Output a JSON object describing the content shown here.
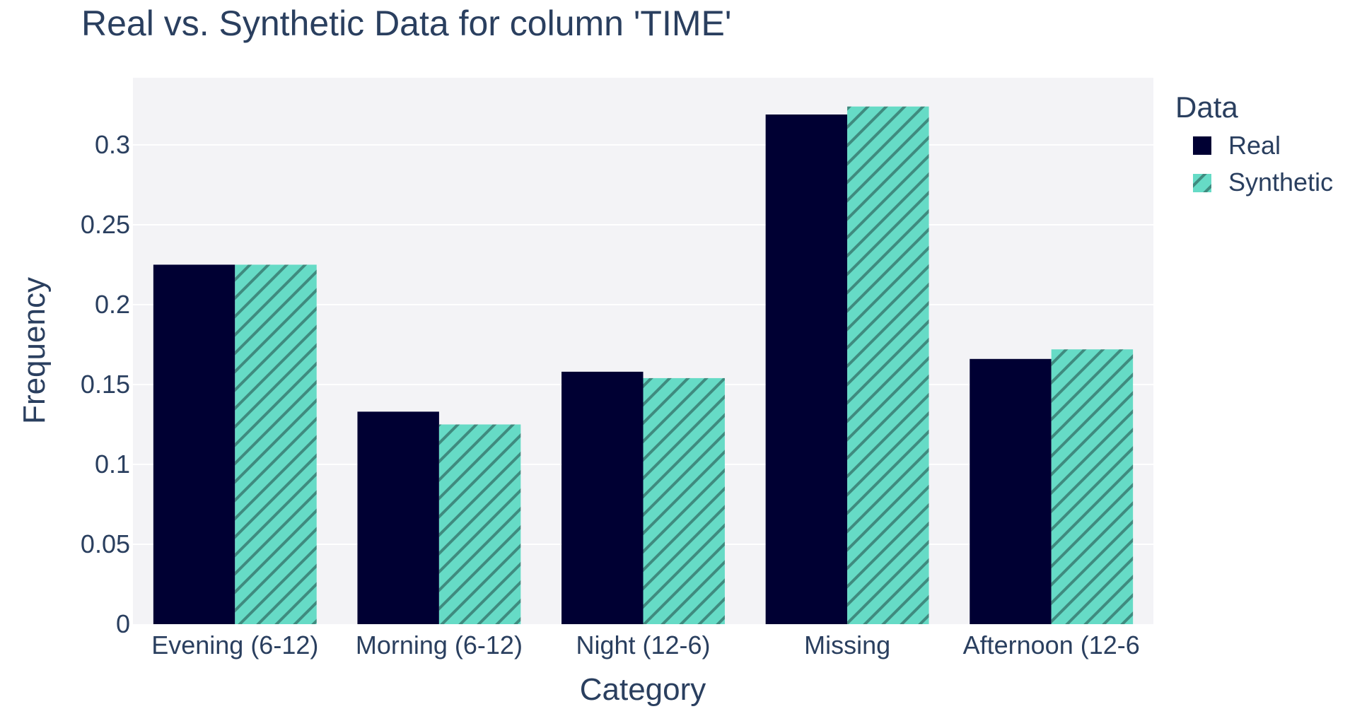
{
  "chart_data": {
    "type": "bar",
    "title": "Real vs. Synthetic Data for column 'TIME'",
    "xlabel": "Category",
    "ylabel": "Frequency",
    "categories": [
      "Evening (6-12)",
      "Morning (6-12)",
      "Night (12-6)",
      "Missing",
      "Afternoon (12-6"
    ],
    "series": [
      {
        "name": "Real",
        "values": [
          0.225,
          0.133,
          0.158,
          0.319,
          0.166
        ],
        "color": "#000033",
        "pattern": "solid"
      },
      {
        "name": "Synthetic",
        "values": [
          0.225,
          0.125,
          0.154,
          0.324,
          0.172
        ],
        "color": "#66dbc6",
        "pattern": "diagonal-hatch"
      }
    ],
    "yticks": [
      "0",
      "0.05",
      "0.1",
      "0.15",
      "0.2",
      "0.25",
      "0.3"
    ],
    "ylim": [
      0,
      0.342
    ],
    "grid": true,
    "legend": {
      "title": "Data",
      "position": "right"
    },
    "colors": {
      "plot_background": "#f3f3f6",
      "gridline": "#ffffff",
      "hatch_line": "#3f8b7f",
      "text": "#2a3f5f"
    }
  }
}
